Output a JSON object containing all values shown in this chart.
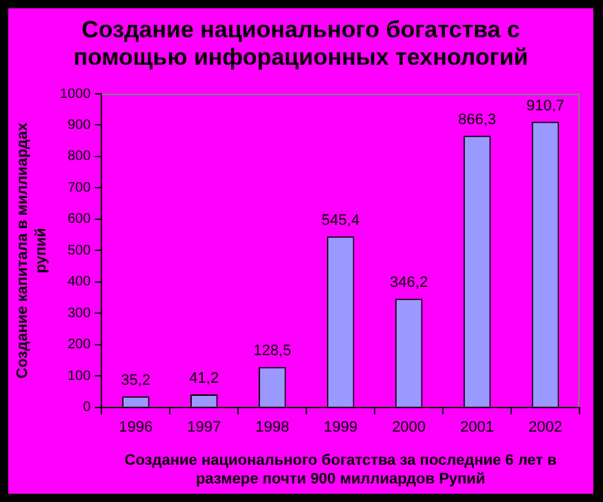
{
  "chart_data": {
    "type": "bar",
    "title": "Создание национального богатства с помощью инфорационных технологий",
    "xlabel": "Создание национального богатства за последние 6 лет в размере почти 900 миллиардов Рупий",
    "ylabel": "Создание капитала в миллиардах рупий",
    "categories": [
      "1996",
      "1997",
      "1998",
      "1999",
      "2000",
      "2001",
      "2002"
    ],
    "values": [
      35.2,
      41.2,
      128.5,
      545.4,
      346.2,
      866.3,
      910.7
    ],
    "value_labels": [
      "35,2",
      "41,2",
      "128,5",
      "545,4",
      "346,2",
      "866,3",
      "910,7"
    ],
    "color": "#9999ff",
    "ylim": [
      0,
      1000
    ],
    "yticks": [
      0,
      100,
      200,
      300,
      400,
      500,
      600,
      700,
      800,
      900,
      1000
    ],
    "grid": false,
    "legend": false
  }
}
